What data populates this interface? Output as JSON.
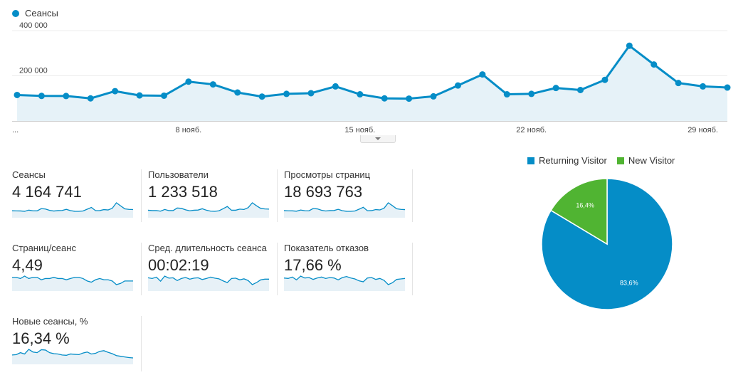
{
  "colors": {
    "primary": "#058dc7",
    "green": "#50b432",
    "area_fill": "#e6f2f8",
    "spark_fill": "#e7f1f7"
  },
  "chart_data": [
    {
      "type": "area",
      "series": [
        {
          "name": "Сеансы",
          "values": [
            115000,
            111000,
            110500,
            100000,
            132000,
            113000,
            112000,
            174000,
            162000,
            126000,
            108000,
            120000,
            123000,
            153000,
            118000,
            100000,
            99000,
            109000,
            157000,
            206000,
            118000,
            120000,
            146000,
            137000,
            182000,
            333000,
            250000,
            168000,
            153000,
            148000
          ]
        }
      ],
      "x_tick_labels": [
        "...",
        "8 нояб.",
        "15 нояб.",
        "22 нояб.",
        "29 нояб."
      ],
      "x_tick_index": [
        0,
        7,
        14,
        21,
        28
      ],
      "y_tick_labels": [
        "400 000",
        "200 000"
      ],
      "y_ticks": [
        400000,
        200000
      ],
      "ylim": [
        0,
        400000
      ],
      "grid": true,
      "legend_position": "top-left"
    },
    {
      "type": "pie",
      "legend_position": "top",
      "slices": [
        {
          "name": "Returning Visitor",
          "value": 83.6,
          "label": "83,6%",
          "color": "#058dc7"
        },
        {
          "name": "New Visitor",
          "value": 16.4,
          "label": "16,4%",
          "color": "#50b432"
        }
      ]
    }
  ],
  "metrics": [
    {
      "label": "Сеансы",
      "value": "4 164 741",
      "spark": [
        115,
        111,
        110,
        100,
        132,
        113,
        112,
        174,
        162,
        126,
        108,
        120,
        123,
        153,
        118,
        100,
        99,
        109,
        157,
        206,
        118,
        120,
        146,
        137,
        182,
        333,
        250,
        168,
        153,
        148
      ]
    },
    {
      "label": "Пользователи",
      "value": "1 233 518",
      "spark": [
        40,
        38,
        38,
        35,
        44,
        38,
        38,
        52,
        50,
        42,
        37,
        40,
        41,
        48,
        40,
        35,
        34,
        37,
        48,
        60,
        40,
        40,
        46,
        44,
        54,
        80,
        64,
        50,
        47,
        46
      ]
    },
    {
      "label": "Просмотры страниц",
      "value": "18 693 763",
      "spark": [
        520,
        500,
        495,
        460,
        580,
        505,
        500,
        730,
        690,
        550,
        480,
        520,
        530,
        650,
        510,
        450,
        445,
        480,
        660,
        850,
        510,
        520,
        620,
        590,
        760,
        1300,
        1010,
        700,
        640,
        620
      ]
    },
    {
      "label": "Страниц/сеанс",
      "value": "4,49",
      "spark": [
        4.5,
        4.5,
        4.4,
        4.6,
        4.4,
        4.5,
        4.5,
        4.3,
        4.4,
        4.4,
        4.5,
        4.4,
        4.4,
        4.3,
        4.4,
        4.5,
        4.5,
        4.4,
        4.2,
        4.1,
        4.3,
        4.4,
        4.3,
        4.3,
        4.2,
        3.9,
        4.0,
        4.2,
        4.2,
        4.2
      ]
    },
    {
      "label": "Сред. длительность сеанса",
      "value": "00:02:19",
      "spark": [
        140,
        138,
        142,
        130,
        145,
        139,
        140,
        132,
        138,
        141,
        136,
        139,
        140,
        135,
        138,
        142,
        139,
        137,
        131,
        126,
        138,
        139,
        134,
        137,
        132,
        120,
        126,
        134,
        136,
        136
      ]
    },
    {
      "label": "Показатель отказов",
      "value": "17,66 %",
      "spark": [
        17.6,
        17.5,
        17.8,
        17.2,
        18.0,
        17.6,
        17.7,
        17.3,
        17.6,
        17.8,
        17.5,
        17.7,
        17.6,
        17.2,
        17.7,
        17.9,
        17.6,
        17.4,
        17.0,
        16.8,
        17.6,
        17.7,
        17.3,
        17.5,
        17.1,
        16.2,
        16.6,
        17.3,
        17.4,
        17.5
      ]
    },
    {
      "label": "Новые сеансы, %",
      "value": "16,34 %",
      "spark": [
        16.5,
        16.6,
        17.2,
        16.8,
        18.2,
        17.4,
        17.2,
        18.1,
        18.0,
        17.2,
        16.9,
        16.8,
        16.5,
        16.4,
        16.8,
        16.7,
        16.6,
        17.1,
        17.4,
        16.8,
        17.0,
        17.6,
        17.8,
        17.3,
        16.9,
        16.3,
        16.1,
        15.9,
        15.7,
        15.6
      ]
    }
  ]
}
